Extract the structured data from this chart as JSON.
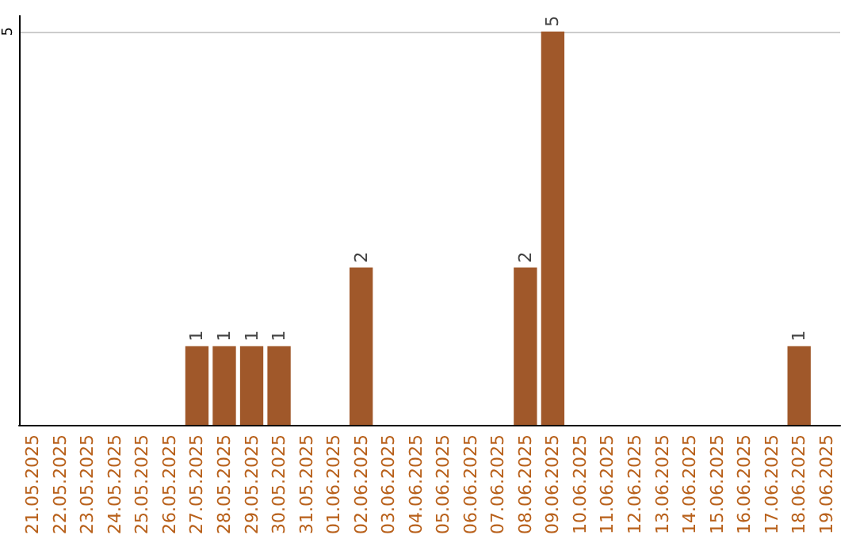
{
  "chart_data": {
    "type": "bar",
    "categories": [
      "21.05.2025",
      "22.05.2025",
      "23.05.2025",
      "24.05.2025",
      "25.05.2025",
      "26.05.2025",
      "27.05.2025",
      "28.05.2025",
      "29.05.2025",
      "30.05.2025",
      "31.05.2025",
      "01.06.2025",
      "02.06.2025",
      "03.06.2025",
      "04.06.2025",
      "05.06.2025",
      "06.06.2025",
      "07.06.2025",
      "08.06.2025",
      "09.06.2025",
      "10.06.2025",
      "11.06.2025",
      "12.06.2025",
      "13.06.2025",
      "14.06.2025",
      "15.06.2025",
      "16.06.2025",
      "17.06.2025",
      "18.06.2025",
      "19.06.2025"
    ],
    "values": [
      0,
      0,
      0,
      0,
      0,
      0,
      1,
      1,
      1,
      1,
      0,
      0,
      2,
      0,
      0,
      0,
      0,
      0,
      2,
      5,
      0,
      0,
      0,
      0,
      0,
      0,
      0,
      0,
      1,
      0
    ],
    "value_labels": [
      null,
      null,
      null,
      null,
      null,
      null,
      "1",
      "1",
      "1",
      "1",
      null,
      null,
      "2",
      null,
      null,
      null,
      null,
      null,
      "2",
      "5",
      null,
      null,
      null,
      null,
      null,
      null,
      null,
      null,
      "1",
      null
    ],
    "color": "#a0582a",
    "ylim": [
      0,
      5.2
    ],
    "yticks": [
      5
    ],
    "grid": "y"
  }
}
